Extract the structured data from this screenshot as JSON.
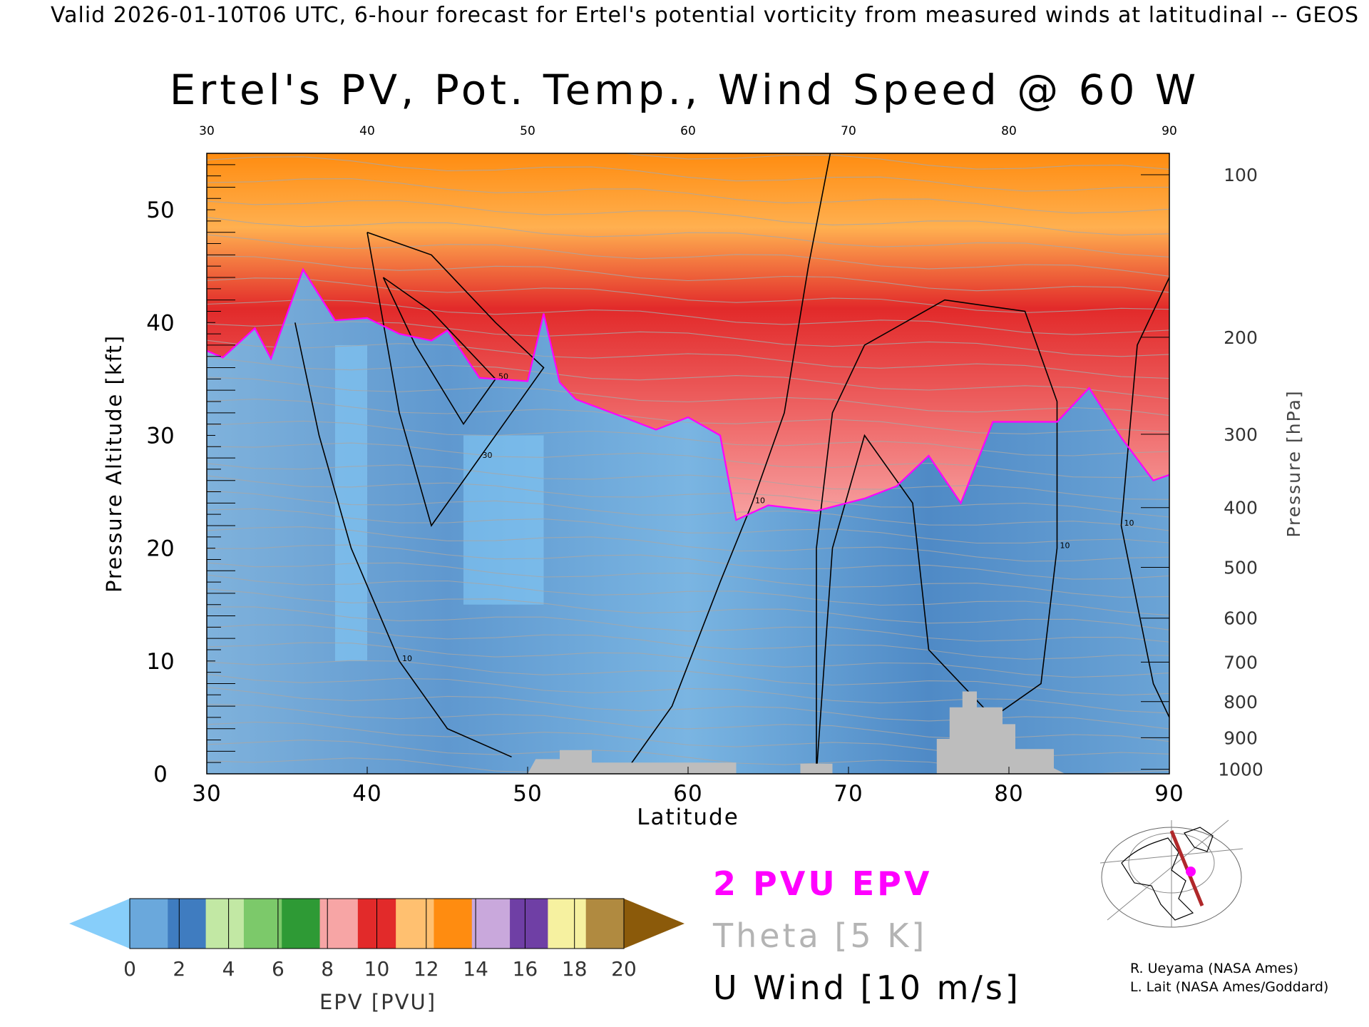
{
  "header": "Valid 2026-01-10T06 UTC, 6-hour forecast for Ertel's potential vorticity from measured winds at latitudinal -- GEOS",
  "chart_data": {
    "type": "heatmap",
    "title": "Ertel's PV, Pot. Temp., Wind Speed @ 60 W",
    "xlabel": "Latitude",
    "ylabel": "Pressure Altitude [kft]",
    "y2label": "Pressure [hPa]",
    "xlim": [
      30,
      90
    ],
    "ylim": [
      0,
      55
    ],
    "x_ticks": [
      "30",
      "40",
      "50",
      "60",
      "70",
      "80",
      "90"
    ],
    "y_ticks": [
      "0",
      "10",
      "20",
      "30",
      "40",
      "50"
    ],
    "pressure_ticks": [
      {
        "label": "100",
        "kft": 53.1
      },
      {
        "label": "200",
        "kft": 38.7
      },
      {
        "label": "300",
        "kft": 30.1
      },
      {
        "label": "400",
        "kft": 23.6
      },
      {
        "label": "500",
        "kft": 18.3
      },
      {
        "label": "600",
        "kft": 13.8
      },
      {
        "label": "700",
        "kft": 9.9
      },
      {
        "label": "800",
        "kft": 6.4
      },
      {
        "label": "900",
        "kft": 3.2
      },
      {
        "label": "1000",
        "kft": 0.4
      }
    ],
    "tropopause_2pvu_kft": [
      {
        "lat": 30,
        "kft": 37.5
      },
      {
        "lat": 31,
        "kft": 36.9
      },
      {
        "lat": 33,
        "kft": 39.5
      },
      {
        "lat": 34,
        "kft": 36.8
      },
      {
        "lat": 36,
        "kft": 44.7
      },
      {
        "lat": 38,
        "kft": 40.2
      },
      {
        "lat": 40,
        "kft": 40.4
      },
      {
        "lat": 42,
        "kft": 39.0
      },
      {
        "lat": 44,
        "kft": 38.4
      },
      {
        "lat": 45,
        "kft": 39.3
      },
      {
        "lat": 47,
        "kft": 35.1
      },
      {
        "lat": 50,
        "kft": 34.8
      },
      {
        "lat": 51,
        "kft": 40.8
      },
      {
        "lat": 52,
        "kft": 34.7
      },
      {
        "lat": 53,
        "kft": 33.2
      },
      {
        "lat": 56,
        "kft": 31.6
      },
      {
        "lat": 58,
        "kft": 30.5
      },
      {
        "lat": 60,
        "kft": 31.6
      },
      {
        "lat": 62,
        "kft": 30.0
      },
      {
        "lat": 63,
        "kft": 22.5
      },
      {
        "lat": 65,
        "kft": 23.8
      },
      {
        "lat": 68,
        "kft": 23.3
      },
      {
        "lat": 71,
        "kft": 24.4
      },
      {
        "lat": 73,
        "kft": 25.5
      },
      {
        "lat": 75,
        "kft": 28.2
      },
      {
        "lat": 77,
        "kft": 24.0
      },
      {
        "lat": 79,
        "kft": 31.2
      },
      {
        "lat": 83,
        "kft": 31.2
      },
      {
        "lat": 85,
        "kft": 34.2
      },
      {
        "lat": 87,
        "kft": 29.8
      },
      {
        "lat": 89,
        "kft": 26.0
      },
      {
        "lat": 90,
        "kft": 26.5
      }
    ],
    "terrain_kft": [
      {
        "lat": 50,
        "kft": 0
      },
      {
        "lat": 50.5,
        "kft": 1.3
      },
      {
        "lat": 52,
        "kft": 1.3
      },
      {
        "lat": 52,
        "kft": 2.1
      },
      {
        "lat": 54,
        "kft": 2.1
      },
      {
        "lat": 54,
        "kft": 1.0
      },
      {
        "lat": 63,
        "kft": 1.0
      },
      {
        "lat": 63,
        "kft": 0
      },
      {
        "lat": 67,
        "kft": 0
      },
      {
        "lat": 67,
        "kft": 0.9
      },
      {
        "lat": 69,
        "kft": 0.9
      },
      {
        "lat": 69,
        "kft": 0
      },
      {
        "lat": 75.5,
        "kft": 0
      },
      {
        "lat": 75.5,
        "kft": 3.1
      },
      {
        "lat": 76.3,
        "kft": 3.1
      },
      {
        "lat": 76.3,
        "kft": 5.9
      },
      {
        "lat": 77.1,
        "kft": 5.9
      },
      {
        "lat": 77.1,
        "kft": 7.3
      },
      {
        "lat": 78,
        "kft": 7.3
      },
      {
        "lat": 78,
        "kft": 5.9
      },
      {
        "lat": 79.6,
        "kft": 5.9
      },
      {
        "lat": 79.6,
        "kft": 4.4
      },
      {
        "lat": 80.4,
        "kft": 4.4
      },
      {
        "lat": 80.4,
        "kft": 2.2
      },
      {
        "lat": 82.8,
        "kft": 2.2
      },
      {
        "lat": 82.8,
        "kft": 0.5
      },
      {
        "lat": 83.5,
        "kft": 0
      }
    ],
    "wind_contours": [
      {
        "label": "10",
        "points": [
          [
            35.5,
            40
          ],
          [
            37,
            30
          ],
          [
            39,
            20
          ],
          [
            42,
            10
          ],
          [
            45,
            4
          ],
          [
            49,
            1.5
          ]
        ]
      },
      {
        "label": "10",
        "points": [
          [
            56,
            0
          ],
          [
            59,
            6
          ],
          [
            62,
            17
          ],
          [
            64,
            24
          ],
          [
            66,
            32
          ],
          [
            67.5,
            45
          ],
          [
            69,
            56
          ]
        ]
      },
      {
        "label": "50",
        "points": [
          [
            41,
            44
          ],
          [
            44,
            41
          ],
          [
            46,
            38
          ],
          [
            48,
            35
          ],
          [
            46,
            31
          ],
          [
            43,
            38
          ],
          [
            41,
            44
          ]
        ]
      },
      {
        "label": "30",
        "points": [
          [
            40,
            48
          ],
          [
            44,
            46
          ],
          [
            48,
            40
          ],
          [
            51,
            36
          ],
          [
            47,
            28
          ],
          [
            44,
            22
          ],
          [
            42,
            32
          ],
          [
            40,
            48
          ]
        ]
      },
      {
        "label": "10",
        "points": [
          [
            68,
            0
          ],
          [
            68,
            20
          ],
          [
            69,
            32
          ],
          [
            71,
            38
          ],
          [
            76,
            42
          ],
          [
            81,
            41
          ],
          [
            83,
            33
          ],
          [
            83,
            20
          ],
          [
            82,
            8
          ],
          [
            79,
            5
          ],
          [
            75,
            11
          ],
          [
            74,
            24
          ],
          [
            71,
            30
          ],
          [
            69,
            20
          ],
          [
            68,
            0
          ]
        ]
      },
      {
        "label": "10",
        "points": [
          [
            90,
            44
          ],
          [
            88,
            38
          ],
          [
            87,
            22
          ],
          [
            89,
            8
          ],
          [
            90,
            5
          ]
        ]
      }
    ],
    "colorbar": {
      "label": "EPV [PVU]",
      "ticks": [
        "0",
        "2",
        "4",
        "6",
        "8",
        "10",
        "12",
        "14",
        "16",
        "18",
        "20"
      ],
      "colors": [
        "#87cefa",
        "#6aa8dc",
        "#3f7cc0",
        "#c2e8a4",
        "#7cc96a",
        "#2e9a35",
        "#f7a5a5",
        "#e22a2a",
        "#ffc070",
        "#ff8c10",
        "#c9a8dc",
        "#6f3fa5",
        "#f6f1a0",
        "#b08a40",
        "#8b5a0a"
      ]
    },
    "legend": [
      {
        "text": "2 PVU EPV",
        "color": "#ff00ff"
      },
      {
        "text": "Theta [5 K]",
        "color": "#b4b4b4"
      },
      {
        "text": "U Wind [10 m/s]",
        "color": "#000000"
      }
    ],
    "grid": false
  },
  "credits": [
    "R. Ueyama (NASA Ames)",
    "L. Lait (NASA Ames/Goddard)"
  ]
}
